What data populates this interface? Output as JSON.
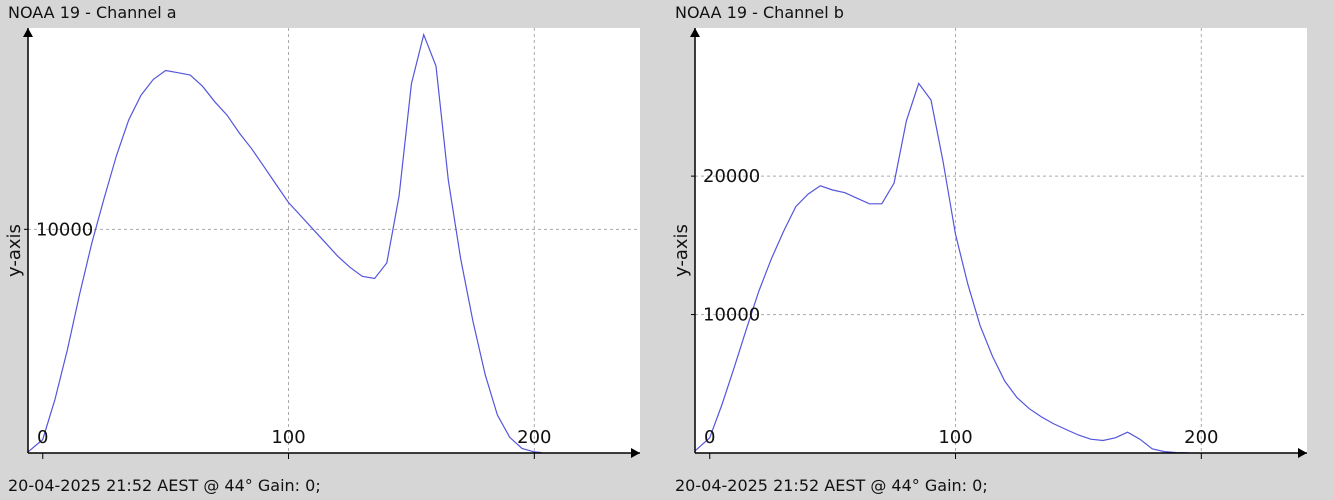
{
  "chart_data": [
    {
      "type": "line",
      "title": "NOAA 19 - Channel a",
      "ylabel": "y-axis",
      "xlabel": "",
      "footer": "20-04-2025 21:52 AEST @ 44° Gain: 0;",
      "xlim": [
        -6,
        243
      ],
      "ylim": [
        0,
        19000
      ],
      "xticks": [
        0,
        100,
        200
      ],
      "yticks": [
        10000
      ],
      "grid": true,
      "series": [
        {
          "color": "#5555dd",
          "x": [
            -6,
            0,
            5,
            10,
            15,
            20,
            25,
            30,
            35,
            40,
            45,
            50,
            55,
            60,
            65,
            70,
            75,
            80,
            85,
            90,
            95,
            100,
            105,
            110,
            115,
            120,
            125,
            130,
            135,
            140,
            145,
            150,
            155,
            160,
            165,
            170,
            175,
            180,
            185,
            190,
            195,
            200,
            203
          ],
          "y": [
            50,
            600,
            2400,
            4600,
            7100,
            9400,
            11400,
            13300,
            14900,
            16000,
            16700,
            17100,
            17000,
            16900,
            16400,
            15700,
            15100,
            14300,
            13600,
            12800,
            12000,
            11200,
            10600,
            10000,
            9400,
            8800,
            8300,
            7900,
            7800,
            8500,
            11500,
            16500,
            18700,
            17300,
            12200,
            8700,
            5900,
            3500,
            1700,
            700,
            200,
            50,
            20
          ]
        }
      ]
    },
    {
      "type": "line",
      "title": "NOAA 19 - Channel b",
      "ylabel": "y-axis",
      "xlabel": "",
      "footer": "20-04-2025 21:52 AEST @ 44° Gain: 0;",
      "xlim": [
        -6,
        243
      ],
      "ylim": [
        0,
        30700
      ],
      "xticks": [
        0,
        100,
        200
      ],
      "yticks": [
        10000,
        20000
      ],
      "grid": true,
      "series": [
        {
          "color": "#5555dd",
          "x": [
            -6,
            0,
            5,
            10,
            15,
            20,
            25,
            30,
            35,
            40,
            45,
            50,
            55,
            60,
            65,
            70,
            75,
            80,
            85,
            90,
            95,
            100,
            105,
            110,
            115,
            120,
            125,
            130,
            135,
            140,
            145,
            150,
            155,
            160,
            165,
            170,
            175,
            180,
            185,
            190,
            195
          ],
          "y": [
            150,
            1100,
            3500,
            6200,
            9000,
            11700,
            14000,
            16000,
            17800,
            18700,
            19300,
            19000,
            18800,
            18400,
            18000,
            18000,
            19500,
            24000,
            26700,
            25500,
            21000,
            15800,
            12200,
            9200,
            7000,
            5200,
            4000,
            3200,
            2600,
            2100,
            1700,
            1300,
            1000,
            900,
            1100,
            1500,
            1000,
            300,
            100,
            30,
            10
          ]
        }
      ]
    }
  ]
}
